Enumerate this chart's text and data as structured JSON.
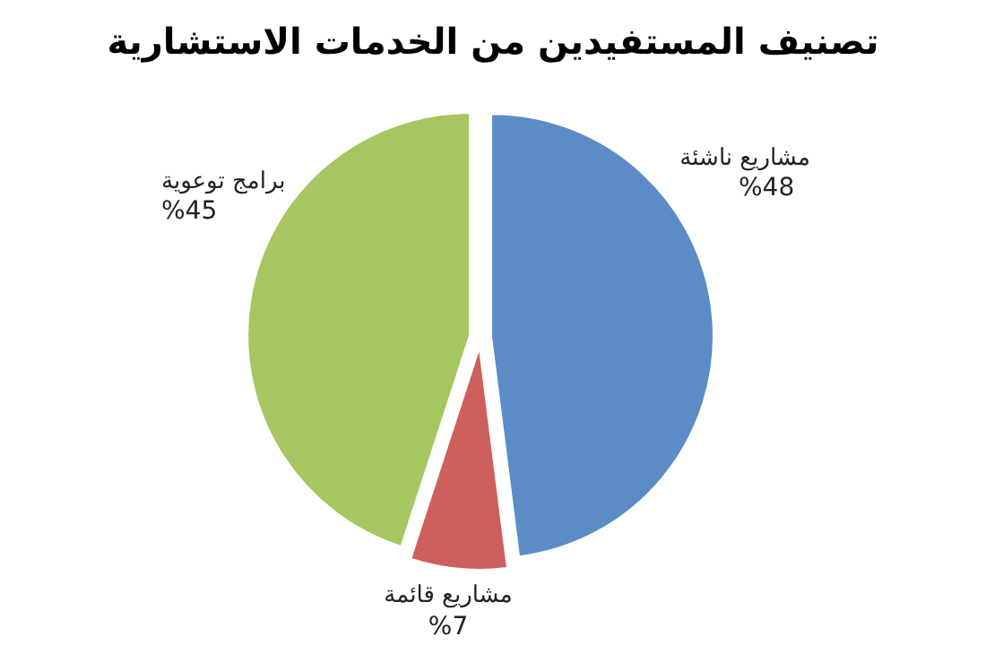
{
  "chart_data": {
    "type": "pie",
    "title": "تصنيف المستفيدين من الخدمات الاستشارية",
    "categories": [
      "مشاريع ناشئة",
      "مشاريع قائمة",
      "برامج توعوية"
    ],
    "values": [
      48,
      7,
      45
    ],
    "value_labels": [
      "%48",
      "%7",
      "%45"
    ],
    "colors": [
      "#5b8cc6",
      "#cd5f5c",
      "#a5c660"
    ]
  }
}
